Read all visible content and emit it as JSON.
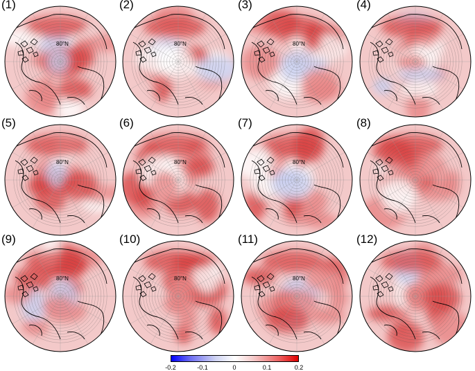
{
  "panels": [
    {
      "label": "(1)",
      "lat_label": "80°N"
    },
    {
      "label": "(2)",
      "lat_label": "80°N"
    },
    {
      "label": "(3)",
      "lat_label": "80°N"
    },
    {
      "label": "(4)",
      "lat_label": ""
    },
    {
      "label": "(5)",
      "lat_label": "80°N"
    },
    {
      "label": "(6)",
      "lat_label": "80°N"
    },
    {
      "label": "(7)",
      "lat_label": "80°N"
    },
    {
      "label": "(8)",
      "lat_label": ""
    },
    {
      "label": "(9)",
      "lat_label": "80°N"
    },
    {
      "label": "(10)",
      "lat_label": "80°N"
    },
    {
      "label": "(11)",
      "lat_label": "80°N"
    },
    {
      "label": "(12)",
      "lat_label": ""
    }
  ],
  "colorbar": {
    "ticks": [
      "-0.2",
      "-0.1",
      "0",
      "0.1",
      "0.2"
    ],
    "min": -0.2,
    "max": 0.2,
    "colors": {
      "low": "#0000ff",
      "mid": "#ffffff",
      "high": "#e00000"
    }
  }
}
